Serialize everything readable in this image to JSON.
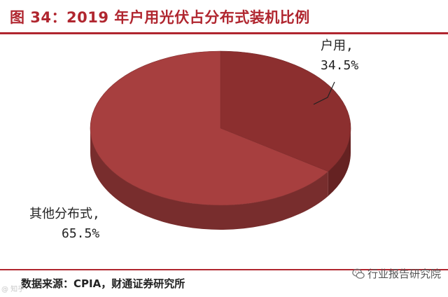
{
  "header": {
    "title": "图 34：2019 年户用光伏占分布式装机比例"
  },
  "chart_data": {
    "type": "pie",
    "title": "图 34：2019 年户用光伏占分布式装机比例",
    "slices": [
      {
        "label": "户用,",
        "value": 34.5,
        "value_label": "34.5%",
        "color": "#8c2f2f"
      },
      {
        "label": "其他分布式,",
        "value": 65.5,
        "value_label": "65.5%",
        "color": "#a73f3f"
      }
    ],
    "style": "3d-tilted",
    "legend": "none"
  },
  "footer": {
    "source": "数据来源：CPIA，财通证券研究所",
    "watermark": "行业报告研究院",
    "corner_mark": "@ 知乎"
  },
  "colors": {
    "accent": "#b0262f",
    "side_dark": "#6e1e1e"
  }
}
